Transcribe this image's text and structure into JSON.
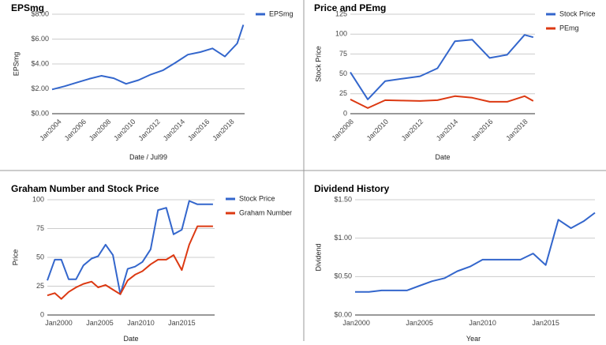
{
  "colors": {
    "blue": "#3366cc",
    "red": "#dc3912",
    "grid": "#cccccc",
    "axis": "#333333",
    "border": "#999999"
  },
  "chart_data": [
    {
      "type": "line",
      "title": "EPSmg",
      "xlabel": "Date / Jul99",
      "ylabel": "EPSmg",
      "ylim": [
        0,
        8
      ],
      "y_ticks": [
        "$0.00",
        "$2.00",
        "$4.00",
        "$6.00",
        "$8.00"
      ],
      "xlim": [
        2003.5,
        2019.1
      ],
      "x_ticks": [
        {
          "label": "Jan2004",
          "x": 2004
        },
        {
          "label": "Jan2006",
          "x": 2006
        },
        {
          "label": "Jan2008",
          "x": 2008
        },
        {
          "label": "Jan2010",
          "x": 2010
        },
        {
          "label": "Jan2012",
          "x": 2012
        },
        {
          "label": "Jan2014",
          "x": 2014
        },
        {
          "label": "Jan2016",
          "x": 2016
        },
        {
          "label": "Jan2018",
          "x": 2018
        }
      ],
      "legend_position": "right",
      "series": [
        {
          "name": "EPSmg",
          "color": "#3366cc",
          "x": [
            2003.5,
            2004.5,
            2005.5,
            2006.5,
            2007.5,
            2008.5,
            2009.5,
            2010.5,
            2011.5,
            2012.5,
            2013.5,
            2014.5,
            2015.5,
            2016.5,
            2017.5,
            2018.5,
            2019.0
          ],
          "values": [
            1.95,
            2.2,
            2.5,
            2.8,
            3.05,
            2.85,
            2.4,
            2.7,
            3.15,
            3.5,
            4.1,
            4.75,
            4.95,
            5.25,
            4.6,
            5.65,
            7.15
          ]
        }
      ]
    },
    {
      "type": "line",
      "title": "Price and PEmg",
      "xlabel": "Date",
      "ylabel": "Stock Price",
      "ylim": [
        0,
        125
      ],
      "y_ticks": [
        "0",
        "25",
        "50",
        "75",
        "100",
        "125"
      ],
      "xlim": [
        2008.5,
        2019.1
      ],
      "x_ticks": [
        {
          "label": "Jan2008",
          "x": 2008.5
        },
        {
          "label": "Jan2010",
          "x": 2010.5
        },
        {
          "label": "Jan2012",
          "x": 2012.5
        },
        {
          "label": "Jan2014",
          "x": 2014.5
        },
        {
          "label": "Jan2016",
          "x": 2016.5
        },
        {
          "label": "Jan2018",
          "x": 2018.5
        }
      ],
      "legend_position": "right",
      "series": [
        {
          "name": "Stock Price",
          "color": "#3366cc",
          "x": [
            2008.5,
            2009.5,
            2010.5,
            2011.5,
            2012.5,
            2013.5,
            2014.5,
            2015.5,
            2016.5,
            2017.5,
            2018.5,
            2019.0
          ],
          "values": [
            52,
            18,
            41,
            44,
            47,
            57,
            91,
            93,
            70,
            74,
            99,
            96
          ]
        },
        {
          "name": "PEmg",
          "color": "#dc3912",
          "x": [
            2008.5,
            2009.5,
            2010.5,
            2011.5,
            2012.5,
            2013.5,
            2014.5,
            2015.5,
            2016.5,
            2017.5,
            2018.5,
            2019.0
          ],
          "values": [
            18,
            7,
            17,
            16.5,
            16,
            17,
            22,
            20,
            15,
            15,
            22,
            16
          ]
        }
      ]
    },
    {
      "type": "line",
      "title": "Graham Number and Stock Price",
      "xlabel": "Date",
      "ylabel": "Price",
      "ylim": [
        0,
        100
      ],
      "y_ticks": [
        "0",
        "25",
        "50",
        "75",
        "100"
      ],
      "xlim": [
        1998.6,
        2019.0
      ],
      "x_ticks": [
        {
          "label": "Jan2000",
          "x": 2000
        },
        {
          "label": "Jan2005",
          "x": 2005
        },
        {
          "label": "Jan2010",
          "x": 2010
        },
        {
          "label": "Jan2015",
          "x": 2015
        }
      ],
      "legend_position": "right",
      "series": [
        {
          "name": "Stock Price",
          "color": "#3366cc",
          "x": [
            1998.6,
            1999.5,
            2000.3,
            2001.2,
            2002.1,
            2003.0,
            2004.0,
            2004.8,
            2005.7,
            2006.6,
            2007.5,
            2008.4,
            2009.3,
            2010.2,
            2011.2,
            2012.1,
            2013.1,
            2014.0,
            2015.0,
            2015.9,
            2016.9,
            2017.8,
            2018.8
          ],
          "values": [
            30,
            48,
            48,
            31,
            31,
            43,
            49,
            51,
            61,
            52,
            18,
            40,
            42,
            46,
            57,
            91,
            93,
            70,
            74,
            99,
            96,
            96,
            96
          ]
        },
        {
          "name": "Graham Number",
          "color": "#dc3912",
          "x": [
            1998.6,
            1999.5,
            2000.3,
            2001.2,
            2002.1,
            2003.0,
            2004.0,
            2004.8,
            2005.7,
            2006.6,
            2007.5,
            2008.4,
            2009.3,
            2010.2,
            2011.2,
            2012.1,
            2013.1,
            2014.0,
            2015.0,
            2015.9,
            2016.9,
            2017.8,
            2018.8
          ],
          "values": [
            17,
            19,
            14,
            20,
            24,
            27,
            29,
            24,
            26,
            22,
            18,
            30,
            35,
            38,
            44,
            48,
            48,
            52,
            39,
            61,
            77,
            77,
            77
          ]
        }
      ]
    },
    {
      "type": "line",
      "title": "Dividend History",
      "xlabel": "Year",
      "ylabel": "Dividend",
      "ylim": [
        0,
        1.5
      ],
      "y_ticks": [
        "$0.00",
        "$0.50",
        "$1.00",
        "$1.50"
      ],
      "xlim": [
        1999.9,
        2018.9
      ],
      "x_ticks": [
        {
          "label": "Jan2000",
          "x": 2000
        },
        {
          "label": "Jan2005",
          "x": 2005
        },
        {
          "label": "Jan2010",
          "x": 2010
        },
        {
          "label": "Jan2015",
          "x": 2015
        }
      ],
      "legend_position": "none",
      "series": [
        {
          "name": "",
          "color": "#3366cc",
          "x": [
            1999.9,
            2001.0,
            2002.0,
            2003.0,
            2004.0,
            2005.0,
            2006.0,
            2007.0,
            2008.0,
            2009.0,
            2010.0,
            2011.0,
            2012.0,
            2013.0,
            2014.0,
            2015.0,
            2016.0,
            2017.0,
            2018.0,
            2018.9
          ],
          "values": [
            0.3,
            0.3,
            0.32,
            0.32,
            0.32,
            0.38,
            0.44,
            0.48,
            0.57,
            0.63,
            0.72,
            0.72,
            0.72,
            0.72,
            0.8,
            0.65,
            1.24,
            1.13,
            1.22,
            1.33
          ]
        }
      ]
    }
  ]
}
